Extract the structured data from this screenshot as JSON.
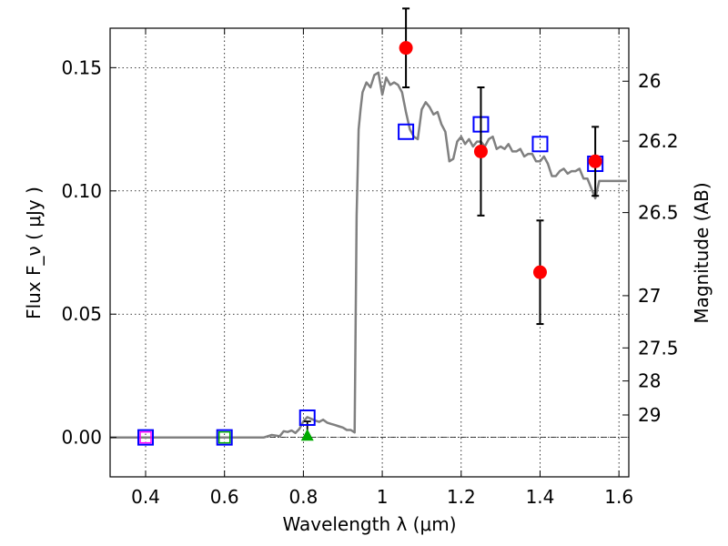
{
  "chart_data": {
    "type": "scatter",
    "title": "",
    "xlabel": "Wavelength  λ (μm)",
    "ylabel": "Flux  F_ν  ( μJy )",
    "y2label": "Magnitude (AB)",
    "xlim": [
      0.31,
      1.625
    ],
    "ylim": [
      -0.016,
      0.166
    ],
    "grid": true,
    "x_ticks": [
      {
        "value": 0.4,
        "label": "0.4"
      },
      {
        "value": 0.6,
        "label": "0.6"
      },
      {
        "value": 0.8,
        "label": "0.8"
      },
      {
        "value": 1.0,
        "label": "1"
      },
      {
        "value": 1.2,
        "label": "1.2"
      },
      {
        "value": 1.4,
        "label": "1.4"
      },
      {
        "value": 1.6,
        "label": "1.6"
      }
    ],
    "y_ticks": [
      {
        "value": 0.0,
        "label": "0.00"
      },
      {
        "value": 0.05,
        "label": "0.05"
      },
      {
        "value": 0.1,
        "label": "0.10"
      },
      {
        "value": 0.15,
        "label": "0.15"
      }
    ],
    "magnitude_ticks": [
      {
        "label": "26",
        "flux": 0.1445
      },
      {
        "label": "26.2",
        "flux": 0.1202
      },
      {
        "label": "26.5",
        "flux": 0.0912
      },
      {
        "label": "27",
        "flux": 0.0575
      },
      {
        "label": "27.5",
        "flux": 0.0363
      },
      {
        "label": "28",
        "flux": 0.0229
      },
      {
        "label": "29",
        "flux": 0.0091
      }
    ],
    "series": [
      {
        "name": "model_spectrum",
        "kind": "line",
        "color": "#808080",
        "x": [
          0.31,
          0.7,
          0.72,
          0.74,
          0.75,
          0.76,
          0.77,
          0.78,
          0.79,
          0.8,
          0.81,
          0.82,
          0.83,
          0.84,
          0.85,
          0.86,
          0.87,
          0.88,
          0.89,
          0.9,
          0.91,
          0.92,
          0.93,
          0.935,
          0.94,
          0.945,
          0.95,
          0.96,
          0.97,
          0.98,
          0.99,
          1.0,
          1.01,
          1.02,
          1.03,
          1.04,
          1.05,
          1.06,
          1.07,
          1.08,
          1.09,
          1.1,
          1.11,
          1.12,
          1.13,
          1.14,
          1.15,
          1.16,
          1.17,
          1.18,
          1.19,
          1.2,
          1.21,
          1.22,
          1.23,
          1.24,
          1.25,
          1.26,
          1.27,
          1.28,
          1.29,
          1.3,
          1.31,
          1.32,
          1.33,
          1.34,
          1.35,
          1.36,
          1.37,
          1.38,
          1.39,
          1.4,
          1.41,
          1.42,
          1.43,
          1.44,
          1.45,
          1.46,
          1.47,
          1.48,
          1.49,
          1.5,
          1.51,
          1.52,
          1.53,
          1.54,
          1.55,
          1.56,
          1.57,
          1.58,
          1.59,
          1.6,
          1.61,
          1.62
        ],
        "y": [
          0.0,
          0.0,
          0.001,
          0.0005,
          0.0025,
          0.0022,
          0.0028,
          0.0018,
          0.0035,
          0.0065,
          0.0082,
          0.0075,
          0.0068,
          0.0063,
          0.0072,
          0.006,
          0.0055,
          0.005,
          0.0045,
          0.004,
          0.003,
          0.003,
          0.002,
          0.09,
          0.125,
          0.133,
          0.14,
          0.144,
          0.142,
          0.147,
          0.148,
          0.139,
          0.146,
          0.143,
          0.144,
          0.143,
          0.14,
          0.132,
          0.125,
          0.122,
          0.121,
          0.133,
          0.136,
          0.134,
          0.131,
          0.132,
          0.127,
          0.124,
          0.112,
          0.113,
          0.12,
          0.122,
          0.119,
          0.121,
          0.118,
          0.12,
          0.12,
          0.118,
          0.121,
          0.122,
          0.117,
          0.118,
          0.117,
          0.119,
          0.116,
          0.116,
          0.117,
          0.114,
          0.115,
          0.115,
          0.112,
          0.112,
          0.114,
          0.111,
          0.106,
          0.106,
          0.108,
          0.109,
          0.107,
          0.108,
          0.108,
          0.109,
          0.105,
          0.105,
          0.101,
          0.097,
          0.104,
          0.104,
          0.104,
          0.104,
          0.104,
          0.104,
          0.104,
          0.104
        ]
      },
      {
        "name": "model_band_flux",
        "kind": "open_square",
        "color": "#0000ff",
        "x": [
          0.4,
          0.6,
          0.81,
          1.06,
          1.25,
          1.4,
          1.54
        ],
        "y": [
          0.0,
          0.0,
          0.008,
          0.124,
          0.127,
          0.119,
          0.111
        ]
      },
      {
        "name": "observed_flux",
        "kind": "filled_circle",
        "color": "#ff0000",
        "errorbar_color": "#000000",
        "x": [
          1.06,
          1.25,
          1.4,
          1.54
        ],
        "y": [
          0.158,
          0.116,
          0.067,
          0.112
        ],
        "yerr": [
          0.016,
          0.026,
          0.021,
          0.014
        ]
      },
      {
        "name": "upper_limit_triangle",
        "kind": "filled_triangle",
        "color": "#00aa00",
        "x": [
          0.81
        ],
        "y": [
          0.0005
        ],
        "yerr": [
          0.006
        ]
      },
      {
        "name": "inner_square_magenta",
        "kind": "inner_square",
        "color": "#ff00ff",
        "x": [
          0.4
        ],
        "y": [
          0.0
        ]
      },
      {
        "name": "inner_square_green",
        "kind": "inner_square",
        "color": "#00aa00",
        "x": [
          0.6
        ],
        "y": [
          0.0
        ]
      }
    ]
  }
}
